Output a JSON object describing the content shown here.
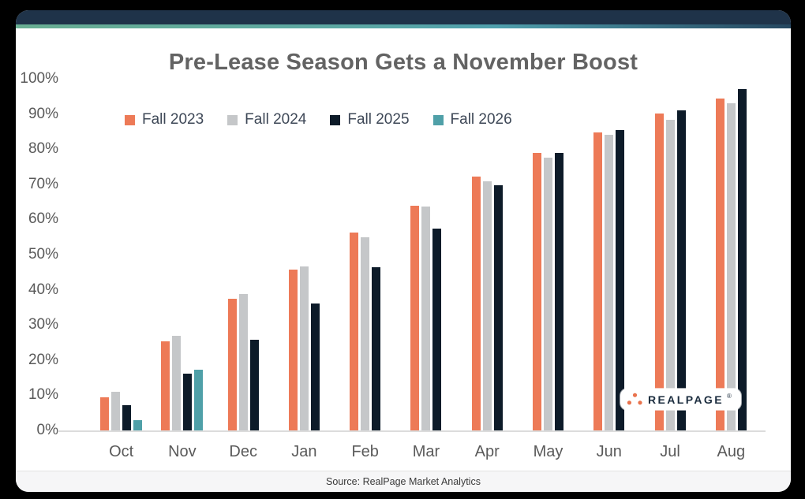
{
  "header": {
    "bar_color": "#1F3349",
    "stripe_gradient": [
      "#69AE92",
      "#4F9FAC",
      "#264760"
    ]
  },
  "chart_data": {
    "type": "bar",
    "title": "Pre-Lease Season Gets a November Boost",
    "categories": [
      "Oct",
      "Nov",
      "Dec",
      "Jan",
      "Feb",
      "Mar",
      "Apr",
      "May",
      "Jun",
      "Jul",
      "Aug"
    ],
    "series": [
      {
        "name": "Fall 2023",
        "color": "#ED7A57",
        "values": [
          9.4,
          25.4,
          37.5,
          45.8,
          56.2,
          64.0,
          72.3,
          78.9,
          84.7,
          90.2,
          94.5
        ]
      },
      {
        "name": "Fall 2024",
        "color": "#C5C7C9",
        "values": [
          10.9,
          27.0,
          38.7,
          46.7,
          54.9,
          63.6,
          70.9,
          77.5,
          84.0,
          88.3,
          93.0
        ]
      },
      {
        "name": "Fall 2025",
        "color": "#0D1B29",
        "values": [
          7.2,
          16.2,
          25.7,
          36.0,
          46.4,
          57.5,
          69.7,
          79.0,
          85.4,
          91.0,
          97.2
        ]
      },
      {
        "name": "Fall 2026",
        "color": "#4FA0A8",
        "values": [
          3.0,
          17.3,
          null,
          null,
          null,
          null,
          null,
          null,
          null,
          null,
          null
        ]
      }
    ],
    "xlabel": "",
    "ylabel": "",
    "ylim": [
      0,
      100
    ],
    "y_ticks": [
      "0%",
      "10%",
      "20%",
      "30%",
      "40%",
      "50%",
      "60%",
      "70%",
      "80%",
      "90%",
      "100%"
    ],
    "grid": false,
    "legend_position": "top-left"
  },
  "logo": {
    "text": "REALPAGE",
    "trademark": "®",
    "dots_color": "#E9734D",
    "text_color": "#1B2C3E"
  },
  "footer": {
    "source": "Source: RealPage Market Analytics"
  }
}
